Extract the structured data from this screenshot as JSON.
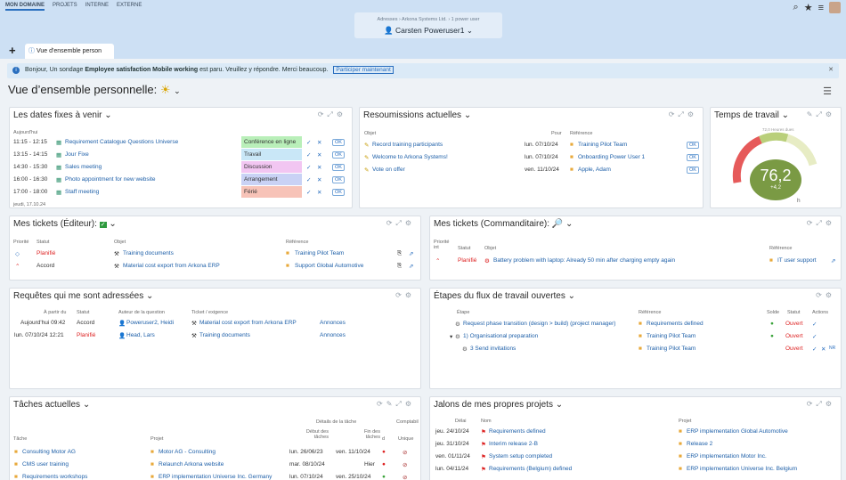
{
  "topnav": [
    "MON DOMAINE",
    "PROJETS",
    "INTERNE",
    "EXTERNE"
  ],
  "context": {
    "crumb": "Adresses › Arkona Systems Ltd. › 1 power user",
    "user": "Carsten Poweruser1"
  },
  "tab": "Vue d'ensemble person",
  "banner": {
    "text1": "Bonjour, Un sondage ",
    "bold": "Employee satisfaction Mobile working",
    "text2": " est paru. Veuillez y répondre. Merci beaucoup.",
    "button": "Participer maintenant"
  },
  "page_title": "Vue d’ensemble personnelle:",
  "dates": {
    "title": "Les dates fixes à venir",
    "today": "Aujourd'hui",
    "footer": "jeudi, 17.10.24",
    "rows": [
      {
        "time": "11:15 - 12:15",
        "name": "Requirement Catalogue Questions Universe",
        "cat": "Conférence en ligne",
        "color": "#b9efb9"
      },
      {
        "time": "13:15 - 14:15",
        "name": "Jour Fixe",
        "cat": "Travail",
        "color": "#c9e7f7"
      },
      {
        "time": "14:30 - 15:30",
        "name": "Sales meeting",
        "cat": "Discussion",
        "color": "#f2c6f2"
      },
      {
        "time": "16:00 - 16:30",
        "name": "Photo appointment for new website",
        "cat": "Arrangement",
        "color": "#c9d2f5"
      },
      {
        "time": "17:00 - 18:00",
        "name": "Staff meeting",
        "cat": "Férié",
        "color": "#f7c3b8"
      }
    ]
  },
  "resub": {
    "title": "Resoumissions actuelles",
    "h_obj": "Objet",
    "h_pour": "Pour",
    "h_ref": "Référence",
    "rows": [
      {
        "obj": "Record training participants",
        "date": "lun. 07/10/24",
        "ref": "Training Pilot Team"
      },
      {
        "obj": "Welcome to Arkona Systems!",
        "date": "lun. 07/10/24",
        "ref": "Onboarding Power User 1"
      },
      {
        "obj": "Vote on offer",
        "date": "ven. 11/10/24",
        "ref": "Apple, Adam"
      }
    ]
  },
  "worktime": {
    "title": "Temps de travail",
    "value": "76,2",
    "delta": "+4,2",
    "scale": "72,0 Heures dues",
    "unit": "h"
  },
  "tickets_ed": {
    "title": "Mes tickets (Éditeur):",
    "h": [
      "Priorité",
      "Statut",
      "Objet",
      "Référence"
    ],
    "rows": [
      {
        "statut": "Planifié",
        "obj": "Training documents",
        "ref": "Training Pilot Team"
      },
      {
        "statut": "Accord",
        "obj": "Material cost export from Arkona ERP",
        "ref": "Support Global Automotive"
      }
    ]
  },
  "tickets_cm": {
    "title": "Mes tickets (Commanditaire):",
    "h": [
      "Priorité int",
      "Statut",
      "Objet",
      "Référence"
    ],
    "rows": [
      {
        "statut": "Planifié",
        "obj": "Battery problem with laptop: Already 50 min after charging empty again",
        "ref": "IT user support"
      }
    ]
  },
  "requests": {
    "title": "Requêtes qui me sont adressées",
    "h": [
      "À partir du",
      "Statut",
      "Auteur de la question",
      "Ticket / exigence"
    ],
    "rows": [
      {
        "date": "Aujourd'hui 09:42",
        "statut": "Accord",
        "auteur": "Poweruser2, Heidi",
        "ticket": "Material cost export from Arkona ERP",
        "link": "Annonces"
      },
      {
        "date": "lun. 07/10/24 12:21",
        "statut": "Planifié",
        "auteur": "Head, Lars",
        "ticket": "Training documents",
        "link": "Annonces"
      }
    ]
  },
  "workflow": {
    "title": "Étapes du flux de travail ouvertes",
    "h": [
      "Étape",
      "Référence",
      "Solde",
      "Statut",
      "Actions"
    ],
    "rows": [
      {
        "step": "Request phase transition (design > build) (project manager)",
        "ref": "Requirements defined",
        "statut": "Ouvert"
      },
      {
        "step": "1) Organisational preparation",
        "ref": "Training Pilot Team",
        "statut": "Ouvert"
      },
      {
        "step": "3 Send invitations",
        "ref": "Training Pilot Team",
        "statut": "Ouvert"
      }
    ]
  },
  "tasks": {
    "title": "Tâches actuelles",
    "group": "Détails de la tâche",
    "compat": "Comptabil",
    "h": [
      "Tâche",
      "Projet",
      "Début des tâches",
      "Fin des tâches",
      "d",
      "Unique"
    ],
    "rows": [
      {
        "task": "Consulting Motor AG",
        "proj": "Motor AG - Consulting",
        "start": "lun. 26/06/23",
        "end": "ven. 11/10/24"
      },
      {
        "task": "CMS user training",
        "proj": "Relaunch Arkona website",
        "start": "mar. 08/10/24",
        "end": "Hier"
      },
      {
        "task": "Requirements workshops",
        "proj": "ERP implementation Universe Inc. Germany",
        "start": "lun. 07/10/24",
        "end": "ven. 25/10/24"
      }
    ]
  },
  "milestones": {
    "title": "Jalons de mes propres projets",
    "h": [
      "Délai",
      "Nom",
      "Projet"
    ],
    "rows": [
      {
        "date": "jeu. 24/10/24",
        "name": "Requirements defined",
        "proj": "ERP implementation Global Automotive"
      },
      {
        "date": "jeu. 31/10/24",
        "name": "Interim release 2-B",
        "proj": "Release 2"
      },
      {
        "date": "ven. 01/11/24",
        "name": "System setup completed",
        "proj": "ERP implementation Motor Inc."
      },
      {
        "date": "lun. 04/11/24",
        "name": "Requirements (Belgium) defined",
        "proj": "ERP implementation Universe Inc. Belgium"
      }
    ]
  }
}
